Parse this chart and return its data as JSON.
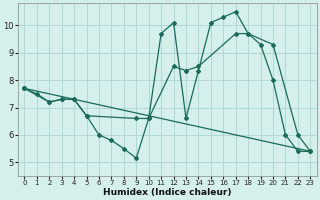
{
  "xlabel": "Humidex (Indice chaleur)",
  "bg_color": "#d4efec",
  "grid_color": "#b0d8d4",
  "line_color": "#1a6b5a",
  "xlim": [
    -0.5,
    23.5
  ],
  "ylim": [
    4.5,
    10.8
  ],
  "yticks": [
    5,
    6,
    7,
    8,
    9,
    10
  ],
  "xticks": [
    0,
    1,
    2,
    3,
    4,
    5,
    6,
    7,
    8,
    9,
    10,
    11,
    12,
    13,
    14,
    15,
    16,
    17,
    18,
    19,
    20,
    21,
    22,
    23
  ],
  "series": [
    {
      "x": [
        0,
        1,
        2,
        3,
        4,
        5,
        6,
        7,
        8,
        9,
        10,
        11,
        12,
        13,
        14,
        15,
        16,
        17,
        18,
        19,
        20,
        21,
        22,
        23
      ],
      "y": [
        7.7,
        7.5,
        7.2,
        7.3,
        7.3,
        6.7,
        6.0,
        5.8,
        5.5,
        5.15,
        6.6,
        9.7,
        10.1,
        6.6,
        8.35,
        10.1,
        10.3,
        10.5,
        9.7,
        9.3,
        8.0,
        6.0,
        5.4,
        5.4
      ]
    },
    {
      "x": [
        0,
        2,
        3,
        4,
        5,
        9,
        10,
        12,
        13,
        14,
        17,
        18,
        20,
        22,
        23
      ],
      "y": [
        7.7,
        7.2,
        7.3,
        7.3,
        6.7,
        6.6,
        6.6,
        8.5,
        8.35,
        8.5,
        9.7,
        9.7,
        9.3,
        6.0,
        5.4
      ]
    },
    {
      "x": [
        0,
        23
      ],
      "y": [
        7.7,
        5.4
      ]
    }
  ]
}
